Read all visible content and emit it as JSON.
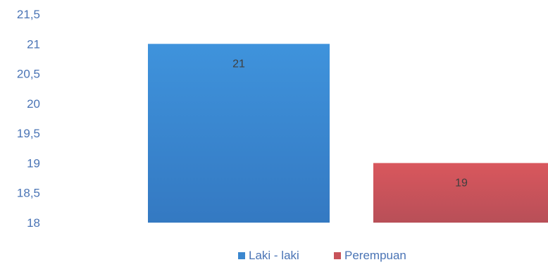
{
  "chart_data": {
    "type": "bar",
    "categories": [
      ""
    ],
    "series": [
      {
        "name": "Laki - laki",
        "values": [
          21
        ],
        "color": "#3b87cf"
      },
      {
        "name": "Perempuan",
        "values": [
          19
        ],
        "color": "#c8535a"
      }
    ],
    "ylim": [
      18,
      21.5
    ],
    "yticks": [
      "21,5",
      "21",
      "20,5",
      "20",
      "19,5",
      "19",
      "18,5",
      "18"
    ],
    "ytick_values": [
      21.5,
      21,
      20.5,
      20,
      19.5,
      19,
      18.5,
      18
    ],
    "data_labels": [
      "21",
      "19"
    ],
    "grid": false,
    "legend": "bottom"
  }
}
